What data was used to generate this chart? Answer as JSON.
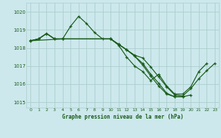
{
  "title": "Graphe pression niveau de la mer (hPa)",
  "bg_color": "#cce8ec",
  "grid_color": "#aacccc",
  "line_color": "#1a5c1a",
  "xlim": [
    -0.5,
    23.5
  ],
  "ylim": [
    1014.7,
    1020.5
  ],
  "yticks": [
    1015,
    1016,
    1017,
    1018,
    1019,
    1020
  ],
  "xticks": [
    0,
    1,
    2,
    3,
    4,
    5,
    6,
    7,
    8,
    9,
    10,
    11,
    12,
    13,
    14,
    15,
    16,
    17,
    18,
    19,
    20,
    21,
    22,
    23
  ],
  "series": [
    {
      "x": [
        0,
        1,
        2,
        3,
        4,
        5,
        6,
        7,
        8,
        9,
        10,
        11,
        12,
        13,
        14,
        15,
        16,
        17,
        18,
        19,
        20,
        21,
        22
      ],
      "y": [
        1018.4,
        1018.5,
        1018.8,
        1018.5,
        1018.5,
        1019.2,
        1019.75,
        1019.35,
        1018.85,
        1018.5,
        1018.5,
        1018.15,
        1017.5,
        1017.0,
        1016.7,
        1016.2,
        1016.55,
        1015.9,
        1015.45,
        1015.45,
        1015.85,
        1016.7,
        1017.15
      ]
    },
    {
      "x": [
        0,
        1,
        2,
        3,
        4,
        10,
        11,
        12,
        13,
        14,
        15,
        16,
        17,
        18,
        19,
        20,
        21,
        22,
        23
      ],
      "y": [
        1018.4,
        1018.5,
        1018.8,
        1018.5,
        1018.5,
        1018.5,
        1018.2,
        1017.9,
        1017.6,
        1017.45,
        1016.95,
        1016.4,
        1015.85,
        1015.4,
        1015.35,
        1015.75,
        1016.3,
        1016.75,
        1017.15
      ]
    },
    {
      "x": [
        0,
        1,
        2,
        3,
        4,
        10,
        11,
        12,
        13,
        14,
        15,
        16,
        17,
        18,
        19,
        20
      ],
      "y": [
        1018.4,
        1018.5,
        1018.8,
        1018.5,
        1018.5,
        1018.5,
        1018.2,
        1017.9,
        1017.55,
        1017.15,
        1016.55,
        1016.05,
        1015.5,
        1015.3,
        1015.3,
        1015.4
      ]
    },
    {
      "x": [
        0,
        4,
        10,
        11,
        12,
        13,
        14,
        15,
        16,
        17,
        18,
        19
      ],
      "y": [
        1018.4,
        1018.5,
        1018.5,
        1018.2,
        1017.9,
        1017.55,
        1017.05,
        1016.45,
        1015.9,
        1015.45,
        1015.3,
        1015.3
      ]
    }
  ]
}
